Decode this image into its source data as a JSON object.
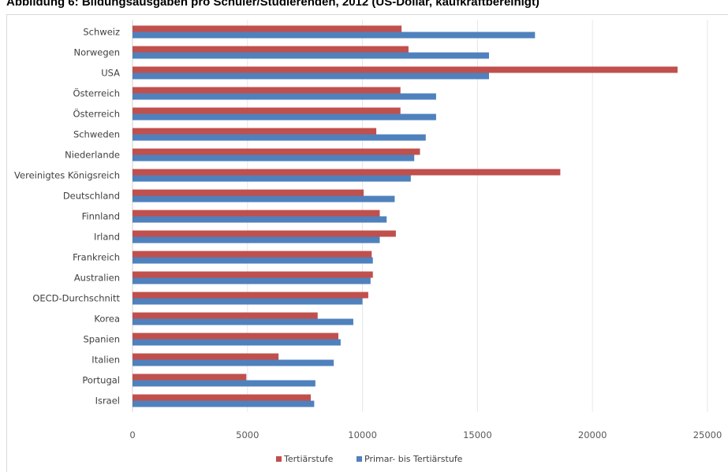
{
  "title": "Abbildung 6: Bildungsausgaben pro Schüler/Studierenden, 2012 (US-Dollar, kaufkraftbereinigt)",
  "chart_data": {
    "type": "bar",
    "orientation": "horizontal",
    "title": "Abbildung 6: Bildungsausgaben pro Schüler/Studierenden, 2012 (US-Dollar, kaufkraftbereinigt)",
    "xlabel": "",
    "ylabel": "",
    "xlim": [
      0,
      25000
    ],
    "xticks": [
      0,
      5000,
      10000,
      15000,
      20000,
      25000
    ],
    "xtick_labels": [
      "0",
      "5000",
      "10000",
      "15000",
      "20000",
      "25000"
    ],
    "grid": "vertical",
    "legend_position": "bottom",
    "categories": [
      "Schweiz",
      "Norwegen",
      "USA",
      "Österreich",
      "Österreich",
      "Schweden",
      "Niederlande",
      "Vereinigtes Königsreich",
      "Deutschland",
      "Finnland",
      "Irland",
      "Frankreich",
      "Australien",
      "OECD-Durchschnitt",
      "Korea",
      "Spanien",
      "Italien",
      "Portugal",
      "Israel"
    ],
    "series": [
      {
        "name": "Tertiärstufe",
        "color": "#c0504d",
        "values": [
          11700,
          12000,
          23700,
          11650,
          11650,
          10600,
          12500,
          18600,
          10050,
          10750,
          11450,
          10400,
          10450,
          10250,
          8050,
          8950,
          6350,
          4950,
          7750
        ]
      },
      {
        "name": "Primar- bis Tertiärstufe",
        "color": "#4f81bd",
        "values": [
          17500,
          15500,
          15500,
          13200,
          13200,
          12750,
          12250,
          12100,
          11400,
          11050,
          10750,
          10450,
          10350,
          10000,
          9600,
          9050,
          8750,
          7950,
          7900
        ]
      }
    ]
  }
}
